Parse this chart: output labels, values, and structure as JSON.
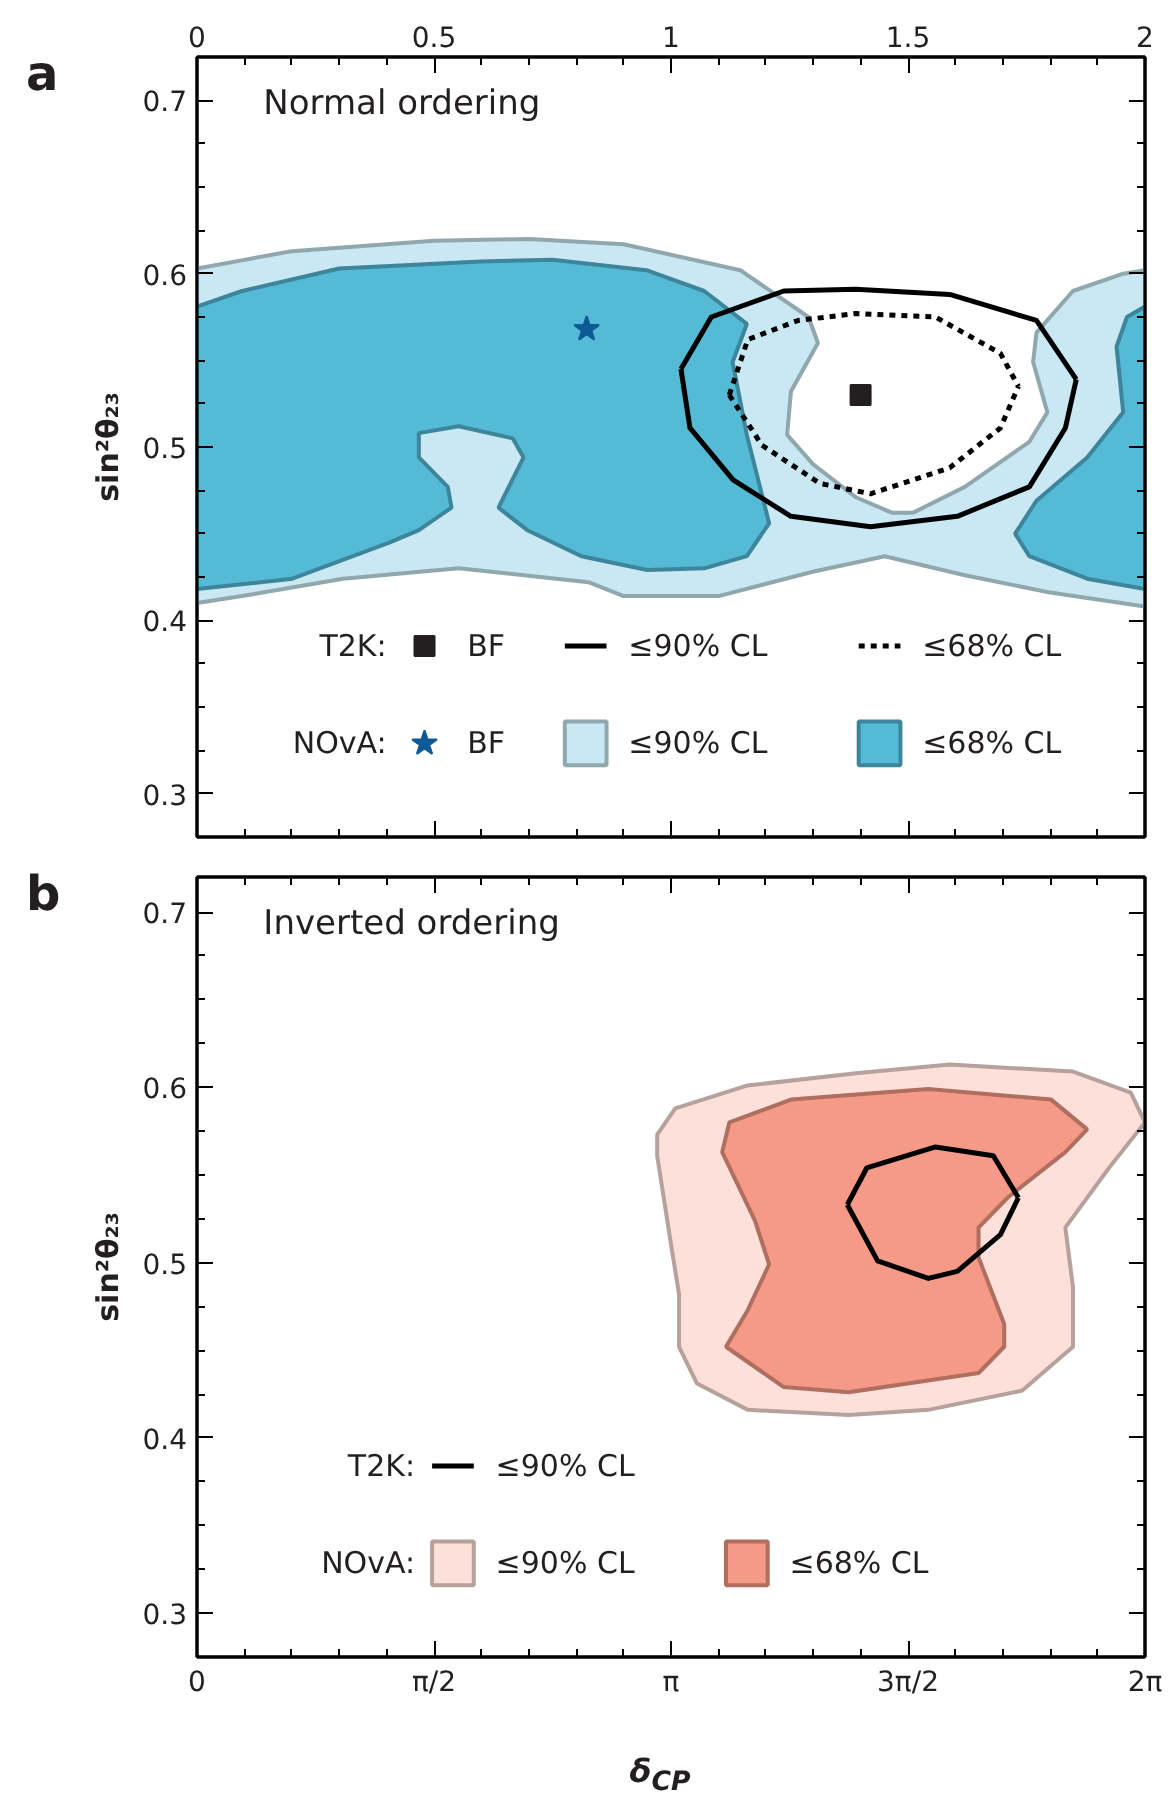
{
  "chart_data": [
    {
      "type": "line",
      "title": "Normal ordering",
      "ylabel": "sin²θ₂₃",
      "annotations": [
        "a",
        "T2K:",
        "NOvA:"
      ],
      "xlim": [
        0,
        2
      ],
      "xticks": [
        0,
        0.5,
        1,
        1.5,
        2
      ],
      "x2lim": [
        0,
        2
      ],
      "x2ticks": [
        0,
        0.5,
        1,
        1.5,
        2
      ],
      "ylim": [
        0.275,
        0.725
      ],
      "yticks": [
        0.3,
        0.4,
        0.5,
        0.6,
        0.7
      ],
      "tick_labels": "y",
      "legend": "bottom",
      "series": [
        {
          "type": "scatter",
          "name": "BF",
          "marker": "square",
          "color": "#231f20",
          "x": [
            1.4
          ],
          "values": [
            0.53
          ]
        },
        {
          "type": "line",
          "name": "≤90% CL",
          "color": "#000000",
          "line_style": "solid",
          "x": [
            1.021,
            1.085,
            1.238,
            1.39,
            1.588,
            1.771,
            1.855
          ],
          "values": [
            0.545,
            0.575,
            0.59,
            0.591,
            0.588,
            0.573,
            0.539
          ]
        },
        {
          "type": "line",
          "color": "#000000",
          "line_style": "solid",
          "x": [
            1.021,
            1.04,
            1.131,
            1.253,
            1.421,
            1.604,
            1.756,
            1.832,
            1.855
          ],
          "values": [
            0.545,
            0.511,
            0.481,
            0.46,
            0.454,
            0.46,
            0.477,
            0.511,
            0.539
          ]
        },
        {
          "type": "line",
          "name": "≤68% CL",
          "color": "#000000",
          "line_style": "dotted",
          "x": [
            1.123,
            1.162,
            1.268,
            1.39,
            1.558,
            1.695,
            1.733
          ],
          "values": [
            0.53,
            0.562,
            0.573,
            0.577,
            0.575,
            0.554,
            0.535
          ]
        },
        {
          "type": "line",
          "color": "#000000",
          "line_style": "dotted",
          "x": [
            1.123,
            1.192,
            1.314,
            1.421,
            1.588,
            1.695,
            1.733
          ],
          "values": [
            0.53,
            0.501,
            0.479,
            0.473,
            0.488,
            0.511,
            0.535
          ]
        },
        {
          "type": "scatter",
          "name": "BF",
          "marker": "star",
          "color": "#0d5a96",
          "x": [
            0.822
          ],
          "values": [
            0.568
          ]
        },
        {
          "type": "area",
          "name": "≤90% CL",
          "color": "#c9e8f3",
          "x": [
            0,
            0.2,
            0.5,
            0.7,
            0.9,
            1.146,
            1.29,
            1.31,
            1.253,
            1.245,
            1.3,
            1.39,
            1.467,
            1.51,
            1.62,
            1.756,
            1.794,
            1.764,
            1.771,
            1.848,
            1.954,
            2,
            2,
            1.8,
            1.62,
            1.451,
            1.299,
            1.1,
            0.9,
            0.826,
            0.552,
            0.308,
            0.095,
            0
          ],
          "values": [
            0.603,
            0.613,
            0.619,
            0.62,
            0.617,
            0.602,
            0.575,
            0.56,
            0.532,
            0.507,
            0.49,
            0.471,
            0.462,
            0.462,
            0.477,
            0.503,
            0.52,
            0.549,
            0.566,
            0.59,
            0.6,
            0.602,
            0.408,
            0.416,
            0.426,
            0.437,
            0.428,
            0.414,
            0.414,
            0.422,
            0.43,
            0.424,
            0.414,
            0.41
          ]
        },
        {
          "type": "area",
          "name": "≤68% CL",
          "color": "#55bad6",
          "x": [
            0,
            0.095,
            0.3,
            0.598,
            0.75,
            0.948,
            1.07,
            1.16,
            1.13,
            1.16,
            1.207,
            1.16,
            1.07,
            0.95,
            0.811,
            0.697,
            0.636,
            0.689,
            0.666,
            0.552,
            0.468,
            0.468,
            0.529,
            0.537,
            0.468,
            0.407,
            0.201,
            0,
            null,
            2,
            1.962,
            1.94,
            1.954,
            1.878,
            1.771,
            1.726,
            1.756,
            1.878,
            2
          ],
          "values": [
            0.581,
            0.59,
            0.603,
            0.607,
            0.608,
            0.602,
            0.59,
            0.571,
            0.549,
            0.507,
            0.456,
            0.437,
            0.43,
            0.429,
            0.437,
            0.452,
            0.465,
            0.494,
            0.505,
            0.512,
            0.508,
            0.494,
            0.477,
            0.465,
            0.452,
            0.445,
            0.424,
            0.418,
            null,
            0.581,
            0.575,
            0.558,
            0.52,
            0.494,
            0.469,
            0.45,
            0.437,
            0.424,
            0.418
          ]
        }
      ]
    },
    {
      "type": "line",
      "title": "Inverted ordering",
      "xlabel": "δ$_{CP}$",
      "ylabel": "sin²θ₂₃",
      "annotations": [
        "b",
        "T2K:",
        "NOvA:"
      ],
      "xlim": [
        0,
        6.2832
      ],
      "xticks": [
        0,
        {
          "value": 1.5708,
          "label": "π/2"
        },
        {
          "value": 3.1416,
          "label": "π"
        },
        {
          "value": 4.7124,
          "label": "3π/2"
        },
        {
          "value": 6.2832,
          "label": "2π"
        }
      ],
      "ylim": [
        0.275,
        0.72
      ],
      "yticks": [
        0.3,
        0.4,
        0.5,
        0.6,
        0.7
      ],
      "legend": "bottom",
      "series": [
        {
          "type": "line",
          "name": "≤90% CL",
          "color": "#000000",
          "line_style": "solid",
          "x": [
            4.31,
            4.439,
            4.895,
            5.278,
            5.444
          ],
          "values": [
            0.533,
            0.554,
            0.566,
            0.561,
            0.537
          ]
        },
        {
          "type": "line",
          "color": "#000000",
          "line_style": "solid",
          "x": [
            4.31,
            4.511,
            4.847,
            5.039,
            5.325,
            5.444
          ],
          "values": [
            0.533,
            0.501,
            0.491,
            0.495,
            0.516,
            0.537
          ]
        },
        {
          "type": "area",
          "name": "≤90% CL",
          "color": "#fde0da",
          "x": [
            3.05,
            3.17,
            3.644,
            4.367,
            4.989,
            5.806,
            6.189,
            6.283,
            6.044,
            5.755,
            5.806,
            5.806,
            5.47,
            4.847,
            4.32,
            3.651,
            3.314,
            3.195,
            3.195,
            3.148,
            3.05
          ],
          "values": [
            0.573,
            0.588,
            0.601,
            0.608,
            0.613,
            0.609,
            0.597,
            0.58,
            0.554,
            0.52,
            0.486,
            0.452,
            0.427,
            0.416,
            0.413,
            0.416,
            0.431,
            0.452,
            0.482,
            0.507,
            0.561
          ]
        },
        {
          "type": "area",
          "name": "≤68% CL",
          "color": "#f49a86",
          "x": [
            3.481,
            3.528,
            3.936,
            4.847,
            5.661,
            5.9,
            5.755,
            5.372,
            5.18,
            5.18,
            5.35,
            5.35,
            5.18,
            4.32,
            3.889,
            3.506,
            3.651,
            3.792,
            3.698
          ],
          "values": [
            0.563,
            0.58,
            0.593,
            0.599,
            0.593,
            0.576,
            0.563,
            0.537,
            0.52,
            0.503,
            0.465,
            0.452,
            0.437,
            0.426,
            0.429,
            0.452,
            0.473,
            0.499,
            0.524
          ]
        }
      ]
    }
  ]
}
